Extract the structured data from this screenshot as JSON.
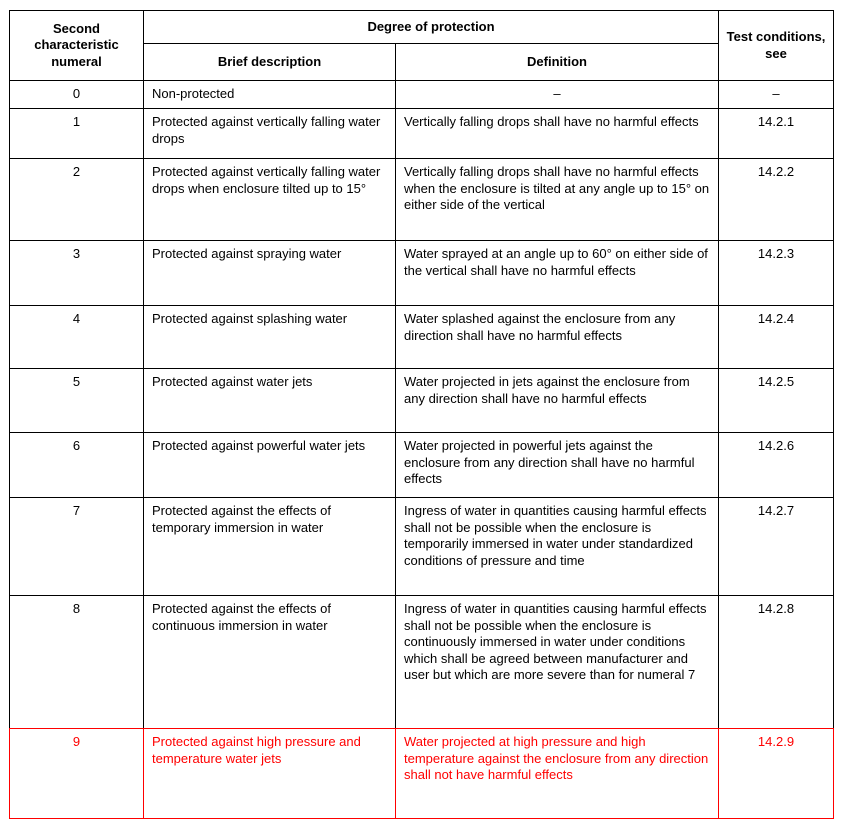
{
  "table": {
    "header": {
      "col_numeral": "Second characteristic numeral",
      "col_degree": "Degree of protection",
      "col_brief": "Brief description",
      "col_definition": "Definition",
      "col_test": "Test conditions, see"
    },
    "rows": [
      {
        "numeral": "0",
        "brief": "Non-protected",
        "definition": "–",
        "test": "–",
        "highlight": false
      },
      {
        "numeral": "1",
        "brief": "Protected against vertically falling water drops",
        "definition": "Vertically falling drops shall have no harmful effects",
        "test": "14.2.1",
        "highlight": false
      },
      {
        "numeral": "2",
        "brief": "Protected against vertically falling water drops when enclosure tilted up to 15°",
        "definition": "Vertically falling drops shall have no harmful effects when the enclosure is tilted at any angle up to 15° on either side of the vertical",
        "test": "14.2.2",
        "highlight": false
      },
      {
        "numeral": "3",
        "brief": "Protected against spraying water",
        "definition": "Water sprayed at an angle up to 60° on either side of the vertical shall have no harmful effects",
        "test": "14.2.3",
        "highlight": false
      },
      {
        "numeral": "4",
        "brief": "Protected against splashing water",
        "definition": "Water splashed against the enclosure from any direction shall have no harmful effects",
        "test": "14.2.4",
        "highlight": false
      },
      {
        "numeral": "5",
        "brief": "Protected against water jets",
        "definition": "Water projected in jets against the enclosure from any direction shall have no harmful effects",
        "test": "14.2.5",
        "highlight": false
      },
      {
        "numeral": "6",
        "brief": "Protected against powerful water jets",
        "definition": "Water projected in powerful jets against the enclosure from any direction shall have no harmful effects",
        "test": "14.2.6",
        "highlight": false
      },
      {
        "numeral": "7",
        "brief": "Protected against the effects of temporary immersion in water",
        "definition": "Ingress of water in quantities causing harmful effects shall not be possible when the enclosure is temporarily immersed in water under standardized conditions of pressure and time",
        "test": "14.2.7",
        "highlight": false
      },
      {
        "numeral": "8",
        "brief": "Protected against the effects of continuous immersion in water",
        "definition": "Ingress of water in quantities causing harmful effects shall not be possible when the enclosure is continuously immersed in water under conditions which shall be agreed between manufacturer and user but which are more severe than for numeral 7",
        "test": "14.2.8",
        "highlight": false
      },
      {
        "numeral": "9",
        "brief": "Protected against high pressure and temperature water jets",
        "definition": "Water projected at high pressure and high temperature against the enclosure from any direction shall not have harmful effects",
        "test": "14.2.9",
        "highlight": true
      }
    ],
    "colors": {
      "text": "#000000",
      "highlight": "#ff0000",
      "border": "#000000",
      "background": "#ffffff"
    }
  }
}
